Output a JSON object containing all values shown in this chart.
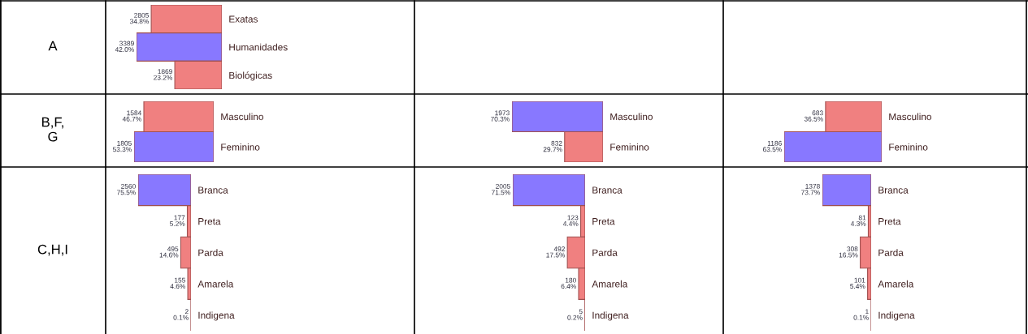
{
  "chart_data": [
    {
      "type": "bar",
      "orientation": "horizontal",
      "ylabel": "A",
      "categories": [
        "Exatas",
        "Humanidades",
        "Biológicas"
      ],
      "values": [
        2805,
        3389,
        1869
      ],
      "colors": [
        "#f08080",
        "#8878ff",
        "#f08080"
      ],
      "value_labels": [
        "2805\n34.8%",
        "3389\n42.0%",
        "1869\n23.2%"
      ]
    },
    {
      "type": "bar",
      "orientation": "horizontal",
      "ylabel": "B,F,\nG",
      "categories": [
        "Masculino",
        "Feminino"
      ],
      "values": [
        1584,
        1805
      ],
      "colors": [
        "#f08080",
        "#8878ff"
      ],
      "value_labels": [
        "1584\n46.7%",
        "1805\n53.3%"
      ]
    },
    {
      "type": "bar",
      "orientation": "horizontal",
      "categories": [
        "Masculino",
        "Feminino"
      ],
      "values": [
        1973,
        832
      ],
      "colors": [
        "#8878ff",
        "#f08080"
      ],
      "value_labels": [
        "1973\n70.3%",
        "832\n29.7%"
      ]
    },
    {
      "type": "bar",
      "orientation": "horizontal",
      "categories": [
        "Masculino",
        "Feminino"
      ],
      "values": [
        683,
        1186
      ],
      "colors": [
        "#f08080",
        "#8878ff"
      ],
      "value_labels": [
        "683\n36.5%",
        "1186\n63.5%"
      ]
    },
    {
      "type": "bar",
      "orientation": "horizontal",
      "ylabel": "C,H,I",
      "categories": [
        "Branca",
        "Preta",
        "Parda",
        "Amarela",
        "Indigena"
      ],
      "values": [
        2560,
        177,
        495,
        155,
        2
      ],
      "colors": [
        "#8878ff",
        "#f08080",
        "#f08080",
        "#f08080",
        "#f08080"
      ],
      "value_labels": [
        "2560\n75.5%",
        "177\n5.2%",
        "495\n14.6%",
        "155\n4.6%",
        "2\n0.1%"
      ]
    },
    {
      "type": "bar",
      "orientation": "horizontal",
      "categories": [
        "Branca",
        "Preta",
        "Parda",
        "Amarela",
        "Indigena"
      ],
      "values": [
        2005,
        123,
        492,
        180,
        5
      ],
      "colors": [
        "#8878ff",
        "#f08080",
        "#f08080",
        "#f08080",
        "#f08080"
      ],
      "value_labels": [
        "2005\n71.5%",
        "123\n4.4%",
        "492\n17.5%",
        "180\n6.4%",
        "5\n0.2%"
      ]
    },
    {
      "type": "bar",
      "orientation": "horizontal",
      "categories": [
        "Branca",
        "Preta",
        "Parda",
        "Amarela",
        "Indigena"
      ],
      "values": [
        1378,
        81,
        308,
        101,
        1
      ],
      "colors": [
        "#8878ff",
        "#f08080",
        "#f08080",
        "#f08080",
        "#f08080"
      ],
      "value_labels": [
        "1378\n73.7%",
        "81\n4.3%",
        "308\n16.5%",
        "101\n5.4%",
        "1\n0.1%"
      ]
    }
  ]
}
